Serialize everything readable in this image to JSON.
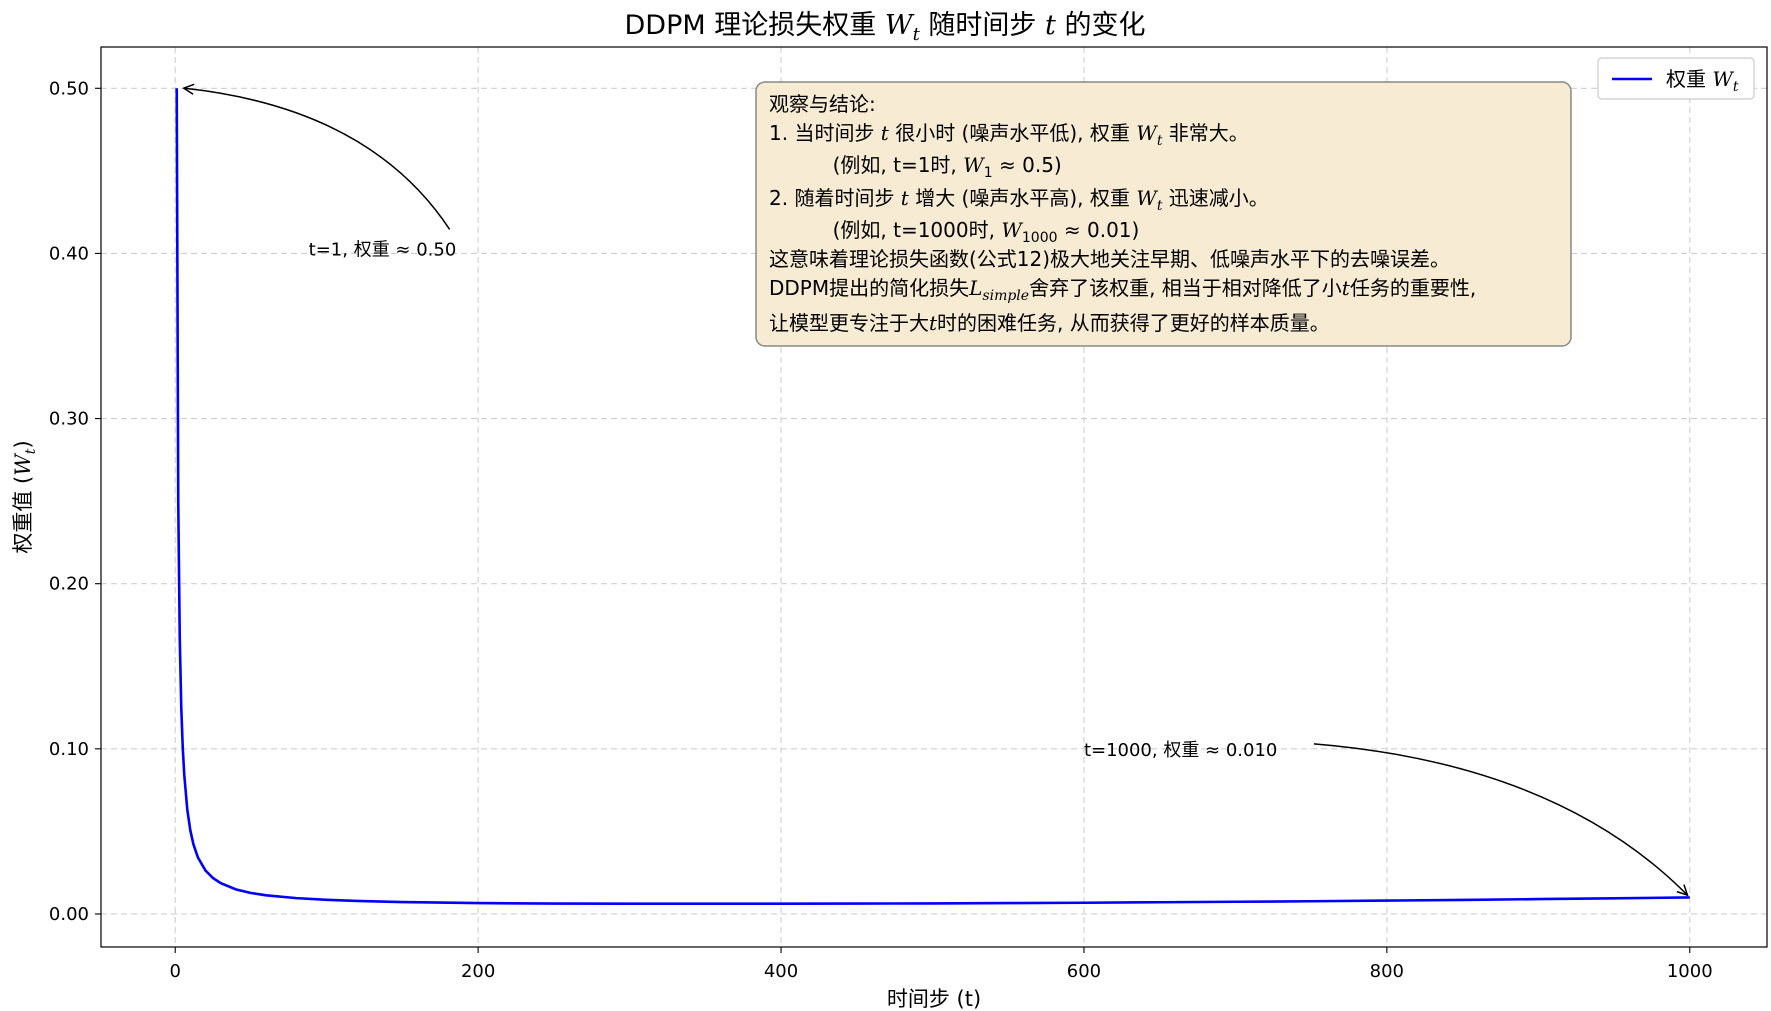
{
  "chart_data": {
    "type": "line",
    "title": {
      "prefix": "DDPM 理论损失权重 ",
      "var": "W",
      "sub": "t",
      "middle": " 随时间步 ",
      "var2": "t",
      "suffix": " 的变化"
    },
    "xlabel": "时间步 (t)",
    "ylabel": {
      "prefix": "权重值 (",
      "var": "W",
      "sub": "t",
      "suffix": ")"
    },
    "xlim": [
      -49,
      1051
    ],
    "ylim": [
      -0.02,
      0.525
    ],
    "x_ticks": [
      0,
      200,
      400,
      600,
      800,
      1000
    ],
    "y_ticks": [
      0.0,
      0.1,
      0.2,
      0.3,
      0.4,
      0.5
    ],
    "x_tick_labels": [
      "0",
      "200",
      "400",
      "600",
      "800",
      "1000"
    ],
    "y_tick_labels": [
      "0.00",
      "0.10",
      "0.20",
      "0.30",
      "0.40",
      "0.50"
    ],
    "grid": true,
    "legend": {
      "placement": "top-right",
      "entries": [
        {
          "prefix": "权重 ",
          "var": "W",
          "sub": "t",
          "color": "#0000ff"
        }
      ]
    },
    "series": [
      {
        "color": "#0000ff",
        "x": [
          1,
          2,
          3,
          4,
          5,
          6,
          8,
          10,
          12,
          15,
          20,
          25,
          30,
          40,
          50,
          60,
          80,
          100,
          120,
          150,
          200,
          250,
          300,
          350,
          400,
          450,
          500,
          550,
          600,
          650,
          700,
          750,
          800,
          850,
          900,
          950,
          1000
        ],
        "y": [
          0.5,
          0.25,
          0.167,
          0.125,
          0.1,
          0.084,
          0.063,
          0.0505,
          0.0423,
          0.0342,
          0.0263,
          0.0217,
          0.0187,
          0.0149,
          0.0127,
          0.0113,
          0.0096,
          0.0086,
          0.0079,
          0.0072,
          0.0066,
          0.0063,
          0.0062,
          0.0062,
          0.0062,
          0.0063,
          0.0064,
          0.0066,
          0.0068,
          0.0071,
          0.0074,
          0.0077,
          0.0081,
          0.0085,
          0.009,
          0.0095,
          0.01
        ]
      }
    ],
    "annotations": [
      {
        "label": "t=1, 权重 ≈ 0.50",
        "point_x": 1,
        "point_y": 0.5,
        "text_x": 100,
        "text_y": 0.4
      },
      {
        "label": "t=1000, 权重 ≈ 0.010",
        "point_x": 1000,
        "point_y": 0.01,
        "text_x": 600,
        "text_y": 0.1
      }
    ],
    "textbox": {
      "title": "观察与结论:",
      "line1": {
        "a": "1. 当时间步 ",
        "var": "t",
        "b": " 很小时 (噪声水平低), 权重 ",
        "var2": "W",
        "sub2": "t",
        "c": " 非常大。"
      },
      "line2": {
        "a": "   (例如, t=1时, ",
        "var": "W",
        "sub": "1",
        "b": " ≈ 0.5)"
      },
      "line3": {
        "a": "2. 随着时间步 ",
        "var": "t",
        "b": " 增大 (噪声水平高), 权重 ",
        "var2": "W",
        "sub2": "t",
        "c": " 迅速减小。"
      },
      "line4": {
        "a": "   (例如, t=1000时, ",
        "var": "W",
        "sub": "1000",
        "b": " ≈ 0.01)"
      },
      "line5": "这意味着理论损失函数(公式12)极大地关注早期、低噪声水平下的去噪误差。",
      "line6": {
        "a": "DDPM提出的简化损失",
        "var": "L",
        "sub": "simple",
        "b": "舍弃了该权重, 相当于相对降低了小",
        "var2": "t",
        "c": "任务的重要性,"
      },
      "line7": {
        "a": "让模型更专注于大",
        "var": "t",
        "b": "时的困难任务, 从而获得了更好的样本质量。"
      }
    }
  }
}
